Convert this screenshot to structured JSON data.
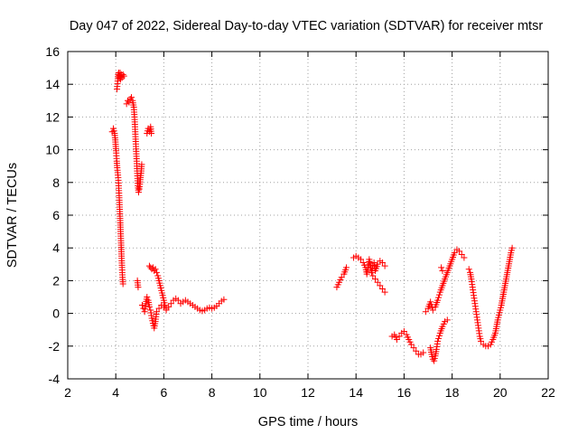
{
  "chart_data": {
    "type": "scatter",
    "title": "Day 047 of 2022, Sidereal Day-to-day VTEC variation (SDTVAR) for receiver mtsr",
    "xlabel": "GPS time / hours",
    "ylabel": "SDTVAR / TECUs",
    "xlim": [
      2,
      22
    ],
    "ylim": [
      -4,
      16
    ],
    "xticks": [
      "2",
      "4",
      "6",
      "8",
      "10",
      "12",
      "14",
      "16",
      "18",
      "20",
      "22"
    ],
    "yticks": [
      "-4",
      "-2",
      "0",
      "2",
      "4",
      "6",
      "8",
      "10",
      "12",
      "14",
      "16"
    ],
    "grid": true,
    "marker": "+",
    "color": "#ff0000",
    "series": [
      {
        "name": "SDTVAR",
        "segments": [
          [
            [
              3.85,
              11.1
            ],
            [
              3.9,
              11.3
            ],
            [
              3.95,
              11.0
            ],
            [
              3.98,
              10.6
            ],
            [
              4.0,
              10.2
            ],
            [
              4.02,
              9.8
            ],
            [
              4.04,
              9.3
            ],
            [
              4.06,
              8.9
            ],
            [
              4.08,
              8.6
            ],
            [
              4.1,
              8.3
            ],
            [
              4.12,
              7.8
            ],
            [
              4.14,
              7.2
            ],
            [
              4.16,
              6.5
            ],
            [
              4.18,
              5.8
            ],
            [
              4.2,
              5.0
            ],
            [
              4.22,
              4.3
            ],
            [
              4.24,
              3.5
            ],
            [
              4.26,
              2.8
            ],
            [
              4.28,
              2.2
            ],
            [
              4.3,
              1.8
            ]
          ],
          [
            [
              4.05,
              13.7
            ],
            [
              4.08,
              14.2
            ],
            [
              4.1,
              14.6
            ],
            [
              4.12,
              14.7
            ],
            [
              4.15,
              14.4
            ],
            [
              4.18,
              14.7
            ],
            [
              4.2,
              14.3
            ],
            [
              4.23,
              14.6
            ],
            [
              4.26,
              14.4
            ],
            [
              4.3,
              14.6
            ],
            [
              4.34,
              14.5
            ]
          ],
          [
            [
              4.45,
              12.8
            ],
            [
              4.5,
              13.0
            ],
            [
              4.55,
              12.9
            ],
            [
              4.6,
              13.1
            ],
            [
              4.65,
              13.2
            ],
            [
              4.7,
              13.0
            ],
            [
              4.75,
              12.6
            ],
            [
              4.78,
              12.0
            ],
            [
              4.8,
              11.4
            ],
            [
              4.82,
              10.8
            ],
            [
              4.84,
              10.2
            ],
            [
              4.86,
              9.6
            ],
            [
              4.88,
              9.0
            ],
            [
              4.9,
              8.4
            ],
            [
              4.92,
              7.8
            ],
            [
              4.95,
              7.4
            ],
            [
              4.98,
              7.6
            ],
            [
              5.0,
              7.9
            ],
            [
              5.03,
              8.3
            ],
            [
              5.06,
              8.7
            ],
            [
              5.08,
              9.1
            ]
          ],
          [
            [
              4.9,
              2.0
            ],
            [
              4.93,
              1.6
            ]
          ],
          [
            [
              5.3,
              11.0
            ],
            [
              5.35,
              11.3
            ],
            [
              5.4,
              11.1
            ],
            [
              5.45,
              11.4
            ],
            [
              5.48,
              11.0
            ]
          ],
          [
            [
              5.1,
              0.5
            ],
            [
              5.15,
              0.3
            ],
            [
              5.2,
              0.1
            ],
            [
              5.25,
              0.6
            ],
            [
              5.3,
              1.0
            ],
            [
              5.35,
              0.8
            ],
            [
              5.4,
              0.4
            ],
            [
              5.45,
              0.2
            ],
            [
              5.5,
              -0.3
            ],
            [
              5.55,
              -0.6
            ],
            [
              5.6,
              -0.9
            ],
            [
              5.65,
              -0.5
            ],
            [
              5.7,
              0.1
            ]
          ],
          [
            [
              5.4,
              2.9
            ],
            [
              5.45,
              2.8
            ],
            [
              5.5,
              2.7
            ],
            [
              5.55,
              2.8
            ],
            [
              5.6,
              2.6
            ],
            [
              5.65,
              2.7
            ],
            [
              5.7,
              2.5
            ],
            [
              5.75,
              2.3
            ],
            [
              5.8,
              2.0
            ],
            [
              5.85,
              1.7
            ],
            [
              5.9,
              1.4
            ],
            [
              5.95,
              1.1
            ],
            [
              6.0,
              0.8
            ],
            [
              6.05,
              0.5
            ],
            [
              6.1,
              0.3
            ]
          ],
          [
            [
              5.8,
              0.3
            ],
            [
              5.9,
              0.5
            ],
            [
              6.0,
              0.4
            ],
            [
              6.1,
              0.2
            ],
            [
              6.2,
              0.4
            ],
            [
              6.3,
              0.6
            ],
            [
              6.4,
              0.8
            ],
            [
              6.5,
              0.9
            ],
            [
              6.6,
              0.8
            ],
            [
              6.7,
              0.6
            ],
            [
              6.8,
              0.7
            ],
            [
              6.9,
              0.8
            ],
            [
              7.0,
              0.7
            ],
            [
              7.1,
              0.6
            ],
            [
              7.2,
              0.5
            ],
            [
              7.3,
              0.4
            ],
            [
              7.4,
              0.3
            ],
            [
              7.5,
              0.2
            ],
            [
              7.6,
              0.15
            ],
            [
              7.7,
              0.2
            ],
            [
              7.8,
              0.3
            ],
            [
              7.9,
              0.35
            ],
            [
              8.0,
              0.3
            ],
            [
              8.1,
              0.35
            ],
            [
              8.2,
              0.45
            ],
            [
              8.3,
              0.6
            ],
            [
              8.4,
              0.75
            ],
            [
              8.5,
              0.85
            ]
          ],
          [
            [
              13.2,
              1.6
            ],
            [
              13.3,
              1.9
            ],
            [
              13.4,
              2.2
            ],
            [
              13.5,
              2.4
            ],
            [
              13.6,
              2.8
            ]
          ],
          [
            [
              13.9,
              3.4
            ],
            [
              14.0,
              3.5
            ],
            [
              14.1,
              3.4
            ],
            [
              14.2,
              3.3
            ],
            [
              14.3,
              3.1
            ],
            [
              14.4,
              2.8
            ],
            [
              14.45,
              2.4
            ],
            [
              14.5,
              2.8
            ],
            [
              14.55,
              3.3
            ],
            [
              14.6,
              2.9
            ],
            [
              14.65,
              2.5
            ],
            [
              14.7,
              2.9
            ],
            [
              14.75,
              3.1
            ],
            [
              14.8,
              2.6
            ],
            [
              14.9,
              3.0
            ],
            [
              15.0,
              3.2
            ],
            [
              15.1,
              3.1
            ],
            [
              15.2,
              2.9
            ]
          ],
          [
            [
              14.7,
              2.3
            ],
            [
              14.8,
              2.1
            ],
            [
              14.9,
              1.9
            ],
            [
              15.0,
              1.7
            ],
            [
              15.1,
              1.5
            ],
            [
              15.2,
              1.3
            ]
          ],
          [
            [
              15.5,
              -1.4
            ],
            [
              15.6,
              -1.3
            ],
            [
              15.7,
              -1.6
            ],
            [
              15.8,
              -1.4
            ],
            [
              15.9,
              -1.2
            ],
            [
              16.0,
              -1.1
            ],
            [
              16.1,
              -1.3
            ],
            [
              16.2,
              -1.6
            ],
            [
              16.3,
              -1.9
            ],
            [
              16.4,
              -2.1
            ],
            [
              16.5,
              -2.3
            ],
            [
              16.6,
              -2.5
            ],
            [
              16.7,
              -2.5
            ],
            [
              16.8,
              -2.4
            ]
          ],
          [
            [
              16.9,
              0.1
            ],
            [
              17.0,
              0.3
            ],
            [
              17.1,
              0.7
            ],
            [
              17.2,
              0.2
            ],
            [
              17.3,
              0.4
            ],
            [
              17.4,
              0.8
            ],
            [
              17.5,
              1.3
            ],
            [
              17.6,
              1.7
            ],
            [
              17.7,
              2.1
            ],
            [
              17.8,
              2.5
            ],
            [
              17.9,
              2.9
            ],
            [
              18.0,
              3.3
            ],
            [
              18.1,
              3.7
            ],
            [
              18.2,
              3.9
            ],
            [
              18.3,
              3.8
            ],
            [
              18.4,
              3.6
            ],
            [
              18.5,
              3.4
            ]
          ],
          [
            [
              17.1,
              -2.1
            ],
            [
              17.15,
              -2.5
            ],
            [
              17.2,
              -2.8
            ],
            [
              17.25,
              -2.9
            ],
            [
              17.3,
              -2.6
            ],
            [
              17.35,
              -2.2
            ],
            [
              17.4,
              -1.7
            ],
            [
              17.5,
              -1.2
            ],
            [
              17.6,
              -0.8
            ],
            [
              17.7,
              -0.5
            ],
            [
              17.8,
              -0.4
            ]
          ],
          [
            [
              17.55,
              2.8
            ],
            [
              17.6,
              2.6
            ]
          ],
          [
            [
              18.7,
              2.7
            ],
            [
              18.75,
              2.5
            ],
            [
              18.8,
              2.1
            ],
            [
              18.85,
              1.6
            ],
            [
              18.9,
              1.1
            ],
            [
              18.95,
              0.6
            ],
            [
              19.0,
              0.1
            ],
            [
              19.05,
              -0.4
            ],
            [
              19.1,
              -0.9
            ],
            [
              19.15,
              -1.4
            ],
            [
              19.2,
              -1.7
            ],
            [
              19.3,
              -1.9
            ],
            [
              19.4,
              -2.0
            ],
            [
              19.5,
              -2.0
            ],
            [
              19.6,
              -1.9
            ],
            [
              19.7,
              -1.6
            ],
            [
              19.8,
              -1.2
            ],
            [
              19.85,
              -0.8
            ],
            [
              19.9,
              -0.4
            ],
            [
              19.95,
              -0.1
            ],
            [
              20.0,
              0.2
            ],
            [
              20.05,
              0.5
            ],
            [
              20.1,
              0.9
            ],
            [
              20.15,
              1.3
            ],
            [
              20.2,
              1.7
            ],
            [
              20.25,
              2.1
            ],
            [
              20.3,
              2.5
            ],
            [
              20.35,
              2.9
            ],
            [
              20.4,
              3.3
            ],
            [
              20.45,
              3.7
            ],
            [
              20.5,
              4.0
            ]
          ]
        ]
      }
    ]
  }
}
